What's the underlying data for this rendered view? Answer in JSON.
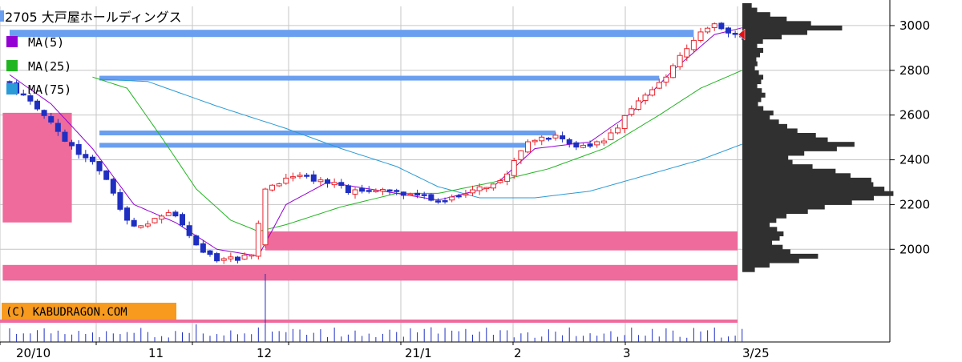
{
  "title": "2705 大戸屋ホールディングス",
  "credit": "(C) KABUDRAGON.COM",
  "colors": {
    "up": "#e8262e",
    "down": "#1f2fc2",
    "ma5": "#9400d3",
    "ma25": "#22b522",
    "ma75": "#2a9bd6",
    "band_blue": "#6a9ff0",
    "band_pink": "#ee6b9c",
    "profile": "#303030",
    "grid": "#c6c6c6",
    "volume": "#1f2fc2",
    "marker": "#e81010",
    "credit_bg": "#f79a1e"
  },
  "chart_data": {
    "type": "candlestick",
    "ylim": [
      1890,
      3100
    ],
    "yticks": [
      "3000",
      "2800",
      "2600",
      "2400",
      "2200",
      "2000"
    ],
    "xticks": [
      "20/10",
      "11",
      "12",
      "21/1",
      "2",
      "3",
      "3/25"
    ],
    "legend": [
      {
        "name": "MA(5)",
        "color": "#9400d3"
      },
      {
        "name": "MA(25)",
        "color": "#22b522"
      },
      {
        "name": "MA(75)",
        "color": "#2a9bd6"
      }
    ],
    "price_key": [
      {
        "x": 0,
        "p": 2750
      },
      {
        "x": 4,
        "p": 2640
      },
      {
        "x": 7,
        "p": 2560
      },
      {
        "x": 9,
        "p": 2470
      },
      {
        "x": 11,
        "p": 2420
      },
      {
        "x": 13,
        "p": 2370
      },
      {
        "x": 15,
        "p": 2290
      },
      {
        "x": 17,
        "p": 2130
      },
      {
        "x": 20,
        "p": 2090
      },
      {
        "x": 22,
        "p": 2150
      },
      {
        "x": 24,
        "p": 2170
      },
      {
        "x": 26,
        "p": 2090
      },
      {
        "x": 28,
        "p": 2000
      },
      {
        "x": 30,
        "p": 1960
      },
      {
        "x": 33,
        "p": 1955
      },
      {
        "x": 36,
        "p": 1985
      },
      {
        "x": 37,
        "p": 2260
      },
      {
        "x": 38,
        "p": 2280
      },
      {
        "x": 40,
        "p": 2310
      },
      {
        "x": 42,
        "p": 2340
      },
      {
        "x": 45,
        "p": 2310
      },
      {
        "x": 48,
        "p": 2290
      },
      {
        "x": 50,
        "p": 2250
      },
      {
        "x": 52,
        "p": 2270
      },
      {
        "x": 56,
        "p": 2255
      },
      {
        "x": 60,
        "p": 2240
      },
      {
        "x": 63,
        "p": 2205
      },
      {
        "x": 66,
        "p": 2250
      },
      {
        "x": 70,
        "p": 2290
      },
      {
        "x": 72,
        "p": 2320
      },
      {
        "x": 74,
        "p": 2420
      },
      {
        "x": 76,
        "p": 2490
      },
      {
        "x": 79,
        "p": 2510
      },
      {
        "x": 82,
        "p": 2470
      },
      {
        "x": 84,
        "p": 2460
      },
      {
        "x": 87,
        "p": 2500
      },
      {
        "x": 89,
        "p": 2570
      },
      {
        "x": 91,
        "p": 2660
      },
      {
        "x": 94,
        "p": 2730
      },
      {
        "x": 96,
        "p": 2790
      },
      {
        "x": 98,
        "p": 2880
      },
      {
        "x": 100,
        "p": 2950
      },
      {
        "x": 102,
        "p": 3000
      },
      {
        "x": 104,
        "p": 2990
      },
      {
        "x": 105,
        "p": 2960
      },
      {
        "x": 106,
        "p": 2950
      }
    ],
    "ma5_key": [
      {
        "x": 0,
        "p": 2780
      },
      {
        "x": 6,
        "p": 2650
      },
      {
        "x": 12,
        "p": 2450
      },
      {
        "x": 18,
        "p": 2200
      },
      {
        "x": 24,
        "p": 2120
      },
      {
        "x": 30,
        "p": 2000
      },
      {
        "x": 36,
        "p": 1970
      },
      {
        "x": 40,
        "p": 2200
      },
      {
        "x": 46,
        "p": 2300
      },
      {
        "x": 54,
        "p": 2260
      },
      {
        "x": 62,
        "p": 2220
      },
      {
        "x": 70,
        "p": 2280
      },
      {
        "x": 76,
        "p": 2450
      },
      {
        "x": 84,
        "p": 2480
      },
      {
        "x": 90,
        "p": 2610
      },
      {
        "x": 96,
        "p": 2800
      },
      {
        "x": 102,
        "p": 2960
      },
      {
        "x": 106,
        "p": 2990
      }
    ],
    "ma25_key": [
      {
        "x": 12,
        "p": 2770
      },
      {
        "x": 17,
        "p": 2720
      },
      {
        "x": 22,
        "p": 2500
      },
      {
        "x": 27,
        "p": 2270
      },
      {
        "x": 32,
        "p": 2130
      },
      {
        "x": 36,
        "p": 2080
      },
      {
        "x": 40,
        "p": 2110
      },
      {
        "x": 48,
        "p": 2190
      },
      {
        "x": 56,
        "p": 2250
      },
      {
        "x": 62,
        "p": 2250
      },
      {
        "x": 70,
        "p": 2300
      },
      {
        "x": 78,
        "p": 2360
      },
      {
        "x": 86,
        "p": 2450
      },
      {
        "x": 94,
        "p": 2600
      },
      {
        "x": 100,
        "p": 2720
      },
      {
        "x": 106,
        "p": 2800
      }
    ],
    "ma75_key": [
      {
        "x": 13,
        "p": 2760
      },
      {
        "x": 20,
        "p": 2750
      },
      {
        "x": 30,
        "p": 2640
      },
      {
        "x": 40,
        "p": 2540
      },
      {
        "x": 48,
        "p": 2450
      },
      {
        "x": 56,
        "p": 2370
      },
      {
        "x": 62,
        "p": 2280
      },
      {
        "x": 68,
        "p": 2230
      },
      {
        "x": 76,
        "p": 2230
      },
      {
        "x": 84,
        "p": 2260
      },
      {
        "x": 92,
        "p": 2330
      },
      {
        "x": 100,
        "p": 2400
      },
      {
        "x": 106,
        "p": 2470
      }
    ],
    "volume_spike_index": 37,
    "last_price": 2960,
    "blue_bands": [
      {
        "price": 2965,
        "from": 0,
        "to": 99
      },
      {
        "price": 2765,
        "from": 13,
        "to": 94
      },
      {
        "price": 2520,
        "from": 13,
        "to": 79
      },
      {
        "price": 2465,
        "from": 13,
        "to": 75
      }
    ],
    "pink_zones": [
      {
        "top": 2610,
        "bottom": 2120,
        "from": -1,
        "to": 9
      },
      {
        "top": 2080,
        "bottom": 1995,
        "from": 37,
        "to": 107
      },
      {
        "top": 1930,
        "bottom": 1860,
        "from": -1,
        "to": 107
      }
    ],
    "volume_profile": [
      {
        "p": 3090,
        "v": 0.06
      },
      {
        "p": 3070,
        "v": 0.1
      },
      {
        "p": 3050,
        "v": 0.18
      },
      {
        "p": 3030,
        "v": 0.3
      },
      {
        "p": 3010,
        "v": 0.45
      },
      {
        "p": 2990,
        "v": 0.66
      },
      {
        "p": 2970,
        "v": 0.44
      },
      {
        "p": 2950,
        "v": 0.26
      },
      {
        "p": 2930,
        "v": 0.14
      },
      {
        "p": 2910,
        "v": 0.1
      },
      {
        "p": 2890,
        "v": 0.14
      },
      {
        "p": 2870,
        "v": 0.12
      },
      {
        "p": 2850,
        "v": 0.09
      },
      {
        "p": 2830,
        "v": 0.1
      },
      {
        "p": 2810,
        "v": 0.08
      },
      {
        "p": 2790,
        "v": 0.11
      },
      {
        "p": 2770,
        "v": 0.14
      },
      {
        "p": 2750,
        "v": 0.12
      },
      {
        "p": 2730,
        "v": 0.1
      },
      {
        "p": 2710,
        "v": 0.13
      },
      {
        "p": 2690,
        "v": 0.15
      },
      {
        "p": 2670,
        "v": 0.12
      },
      {
        "p": 2650,
        "v": 0.1
      },
      {
        "p": 2630,
        "v": 0.14
      },
      {
        "p": 2610,
        "v": 0.2
      },
      {
        "p": 2590,
        "v": 0.18
      },
      {
        "p": 2570,
        "v": 0.24
      },
      {
        "p": 2550,
        "v": 0.3
      },
      {
        "p": 2530,
        "v": 0.36
      },
      {
        "p": 2510,
        "v": 0.48
      },
      {
        "p": 2490,
        "v": 0.55
      },
      {
        "p": 2470,
        "v": 0.74
      },
      {
        "p": 2450,
        "v": 0.6
      },
      {
        "p": 2430,
        "v": 0.4
      },
      {
        "p": 2410,
        "v": 0.3
      },
      {
        "p": 2390,
        "v": 0.34
      },
      {
        "p": 2370,
        "v": 0.46
      },
      {
        "p": 2350,
        "v": 0.62
      },
      {
        "p": 2330,
        "v": 0.72
      },
      {
        "p": 2310,
        "v": 0.84
      },
      {
        "p": 2290,
        "v": 0.88
      },
      {
        "p": 2270,
        "v": 0.96
      },
      {
        "p": 2250,
        "v": 1.0
      },
      {
        "p": 2230,
        "v": 0.86
      },
      {
        "p": 2210,
        "v": 0.7
      },
      {
        "p": 2190,
        "v": 0.55
      },
      {
        "p": 2170,
        "v": 0.42
      },
      {
        "p": 2150,
        "v": 0.3
      },
      {
        "p": 2130,
        "v": 0.22
      },
      {
        "p": 2110,
        "v": 0.18
      },
      {
        "p": 2090,
        "v": 0.22
      },
      {
        "p": 2070,
        "v": 0.28
      },
      {
        "p": 2050,
        "v": 0.24
      },
      {
        "p": 2030,
        "v": 0.2
      },
      {
        "p": 2010,
        "v": 0.26
      },
      {
        "p": 1990,
        "v": 0.32
      },
      {
        "p": 1970,
        "v": 0.48
      },
      {
        "p": 1950,
        "v": 0.38
      },
      {
        "p": 1930,
        "v": 0.18
      },
      {
        "p": 1910,
        "v": 0.08
      }
    ]
  }
}
